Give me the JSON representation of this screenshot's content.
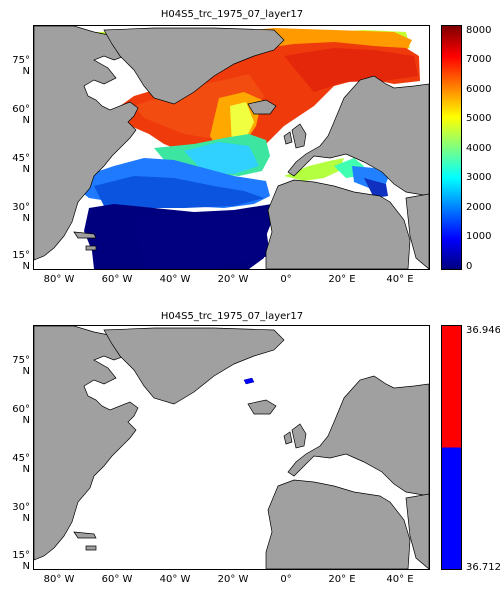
{
  "panels": [
    {
      "title": "H04S5_trc_1975_07_layer17",
      "colorbar_labels": [
        "8000",
        "7000",
        "6000",
        "5000",
        "4000",
        "3000",
        "2000",
        "1000",
        "0"
      ],
      "colormap": [
        "#00007f",
        "#0000ff",
        "#007fff",
        "#00ffff",
        "#7fff7f",
        "#ffff00",
        "#ff7f00",
        "#ff0000",
        "#7f0000"
      ],
      "range": [
        0,
        8000
      ]
    },
    {
      "title": "H04S5_trc_1975_07_layer17",
      "colorbar_labels": [
        "36.946",
        "36.712"
      ],
      "colormap": [
        "#0000ff",
        "#ff0000"
      ],
      "range": [
        36.712,
        36.946
      ]
    }
  ],
  "lat_labels": [
    "75° N",
    "60° N",
    "45° N",
    "30° N",
    "15° N"
  ],
  "lon_labels": [
    "80° W",
    "60° W",
    "40° W",
    "20° W",
    "0°",
    "20° E",
    "40° E"
  ],
  "colors": {
    "land": "#a0a0a0",
    "ocean_nodata": "#ffffff"
  }
}
